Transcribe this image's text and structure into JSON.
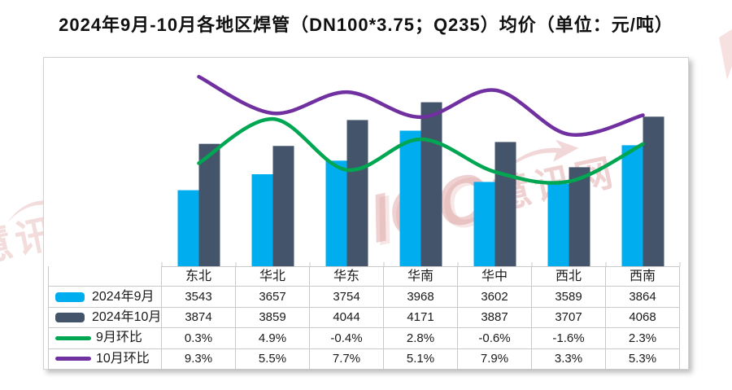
{
  "title": "2024年9月-10月各地区焊管（DN100*3.75；Q235）均价（单位：元/吨）",
  "watermark": {
    "brand": "ICC",
    "site": "慧讯网"
  },
  "chart_data": {
    "type": "bar",
    "subtype": "grouped bars + smoothed lines on secondary % axis, with data table legend",
    "title": "2024年9月-10月各地区焊管（DN100*3.75；Q235）均价（单位：元/吨）",
    "categories": [
      "东北",
      "华北",
      "华东",
      "华南",
      "华中",
      "西北",
      "西南"
    ],
    "series": [
      {
        "name": "2024年9月",
        "type": "bar",
        "color": "#00AEEF",
        "values": [
          3543,
          3657,
          3754,
          3968,
          3602,
          3589,
          3864
        ],
        "display": [
          "3543",
          "3657",
          "3754",
          "3968",
          "3602",
          "3589",
          "3864"
        ]
      },
      {
        "name": "2024年10月",
        "type": "bar",
        "color": "#44546A",
        "values": [
          3874,
          3859,
          4044,
          4171,
          3887,
          3707,
          4068
        ],
        "display": [
          "3874",
          "3859",
          "4044",
          "4171",
          "3887",
          "3707",
          "4068"
        ]
      },
      {
        "name": "9月环比",
        "type": "line",
        "color": "#00A651",
        "values": [
          0.3,
          4.9,
          -0.4,
          2.8,
          -0.6,
          -1.6,
          2.3
        ],
        "display": [
          "0.3%",
          "4.9%",
          "-0.4%",
          "2.8%",
          "-0.6%",
          "-1.6%",
          "2.3%"
        ]
      },
      {
        "name": "10月环比",
        "type": "line",
        "color": "#7030A0",
        "values": [
          9.3,
          5.5,
          7.7,
          5.1,
          7.9,
          3.3,
          5.3
        ],
        "display": [
          "9.3%",
          "5.5%",
          "7.7%",
          "5.1%",
          "7.9%",
          "3.3%",
          "5.3%"
        ]
      }
    ],
    "bar_axis": {
      "min": 3000,
      "max": 4460,
      "unit": "元/吨",
      "visible": false
    },
    "line_axis": {
      "unit": "%",
      "approx_range": [
        -10,
        11
      ],
      "visible": false
    },
    "grid": false,
    "legend_position": "data-table left column",
    "data_table_shown": true
  }
}
